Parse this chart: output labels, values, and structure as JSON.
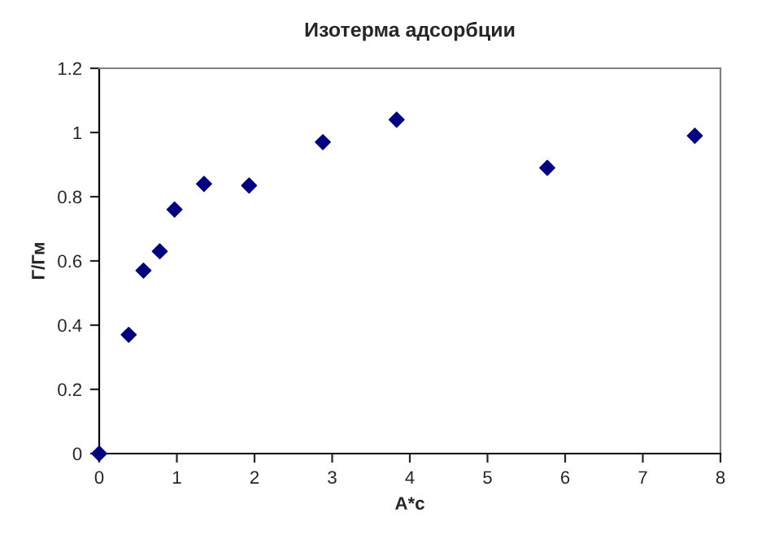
{
  "chart_data": {
    "type": "scatter",
    "title": "Изотерма адсорбции",
    "xlabel": "A*c",
    "ylabel": "Г/Гм",
    "x": [
      0,
      0.38,
      0.57,
      0.78,
      0.97,
      1.35,
      1.93,
      2.88,
      3.83,
      5.77,
      7.67
    ],
    "series": [
      {
        "color": "#000080",
        "values": [
          0,
          0.37,
          0.57,
          0.63,
          0.76,
          0.84,
          0.835,
          0.97,
          1.04,
          0.89,
          0.99
        ]
      }
    ],
    "marker": "diamond",
    "xlim": [
      0,
      8
    ],
    "ylim": [
      0,
      1.2
    ],
    "xticks": [
      0,
      1,
      2,
      3,
      4,
      5,
      6,
      7,
      8
    ],
    "yticks": [
      0,
      0.2,
      0.4,
      0.6,
      0.8,
      1,
      1.2
    ],
    "grid": false,
    "legend": false
  }
}
